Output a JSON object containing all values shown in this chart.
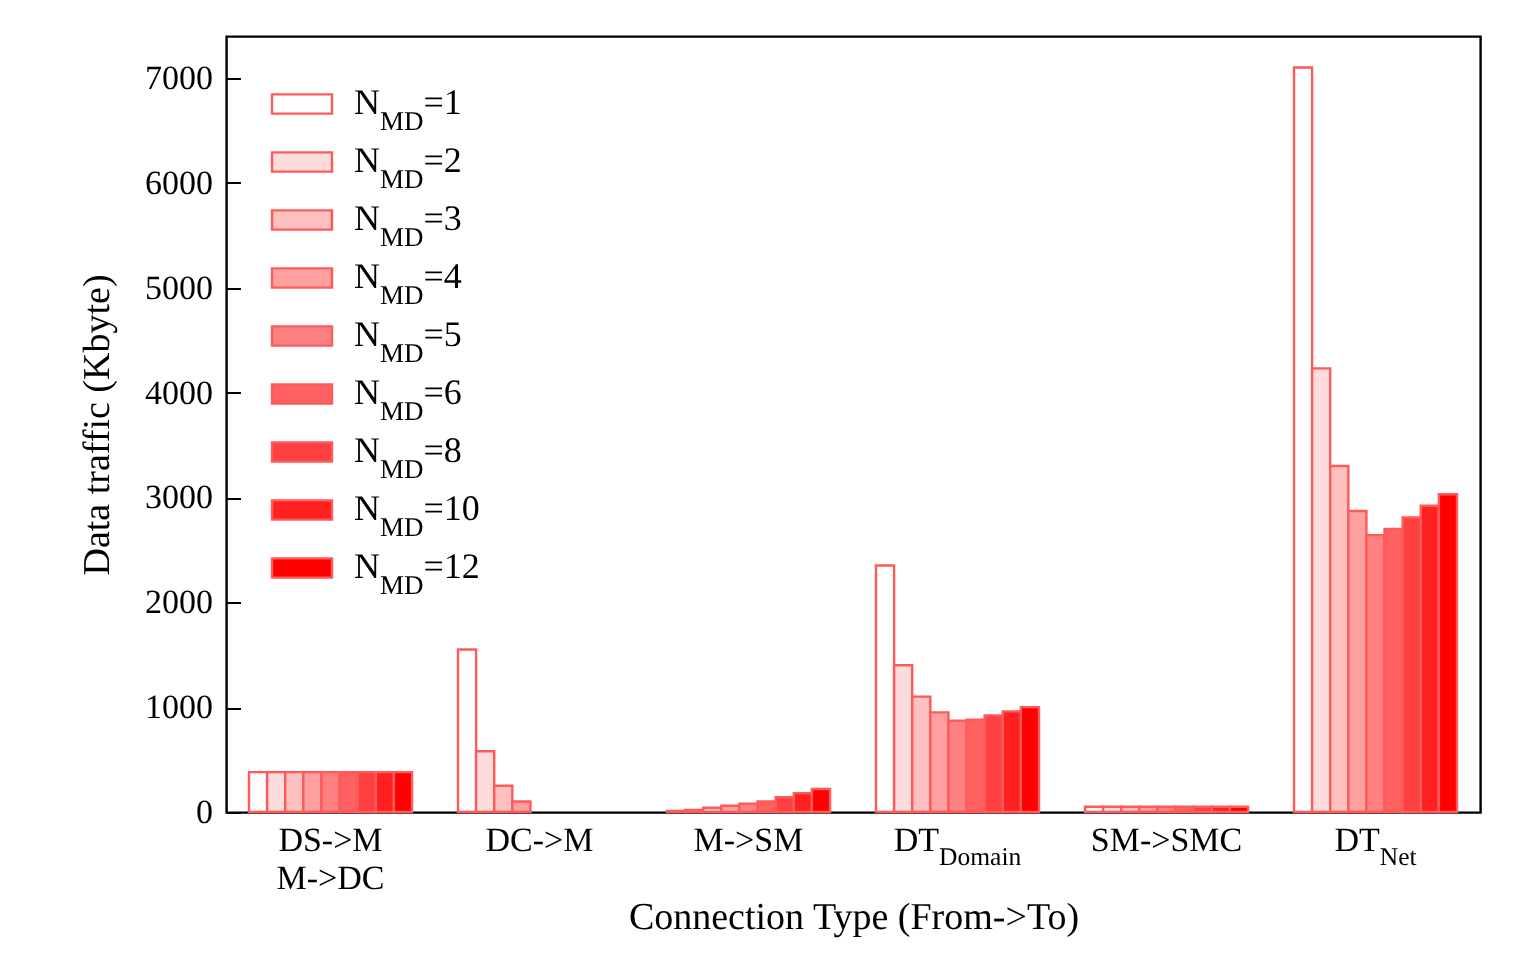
{
  "chart_data": {
    "type": "bar",
    "xlabel": "Connection Type (From->To)",
    "ylabel": "Data traffic (Kbyte)",
    "categories": [
      "DS->M\nM->DC",
      "DC->M",
      "M->SM",
      "DT$_{Domain}$",
      "SM->SMC",
      "DT$_{Net}$"
    ],
    "ylim": [
      0,
      7400
    ],
    "yticks": [
      0,
      1000,
      2000,
      3000,
      4000,
      5000,
      6000,
      7000
    ],
    "legend": "top left",
    "series": [
      {
        "name": "N$_{MD}$=1",
        "color": "#ffffff",
        "values": [
          380,
          1550,
          10,
          2350,
          50,
          7100
        ]
      },
      {
        "name": "N$_{MD}$=2",
        "color": "#ffdcdc",
        "values": [
          380,
          580,
          20,
          1400,
          50,
          4230
        ]
      },
      {
        "name": "N$_{MD}$=3",
        "color": "#ffc0c0",
        "values": [
          380,
          250,
          40,
          1100,
          50,
          3300
        ]
      },
      {
        "name": "N$_{MD}$=4",
        "color": "#ffa0a0",
        "values": [
          380,
          100,
          60,
          950,
          50,
          2870
        ]
      },
      {
        "name": "N$_{MD}$=5",
        "color": "#ff8080",
        "values": [
          380,
          null,
          80,
          870,
          50,
          2640
        ]
      },
      {
        "name": "N$_{MD}$=6",
        "color": "#ff6060",
        "values": [
          380,
          null,
          100,
          880,
          50,
          2700
        ]
      },
      {
        "name": "N$_{MD}$=8",
        "color": "#ff4040",
        "values": [
          380,
          null,
          140,
          920,
          50,
          2810
        ]
      },
      {
        "name": "N$_{MD}$=10",
        "color": "#ff2020",
        "values": [
          380,
          null,
          180,
          960,
          50,
          2920
        ]
      },
      {
        "name": "N$_{MD}$=12",
        "color": "#ff0000",
        "values": [
          380,
          null,
          220,
          1000,
          50,
          3030
        ]
      }
    ]
  }
}
